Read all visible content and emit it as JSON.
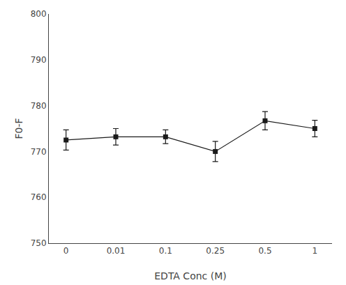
{
  "chart_data": {
    "type": "line",
    "categories": [
      "0",
      "0.01",
      "0.1",
      "0.25",
      "0.5",
      "1"
    ],
    "values": [
      772.5,
      773.2,
      773.2,
      770.0,
      776.7,
      775.0
    ],
    "errors": [
      2.2,
      1.8,
      1.5,
      2.2,
      2.0,
      1.8
    ],
    "xlabel": "EDTA Conc (M)",
    "ylabel": "F0-F",
    "ylim": [
      750,
      800
    ],
    "yticks": [
      750,
      760,
      770,
      780,
      790,
      800
    ],
    "color": "#1a1a1a",
    "marker": "square",
    "line_style": "solid",
    "grid": false
  }
}
